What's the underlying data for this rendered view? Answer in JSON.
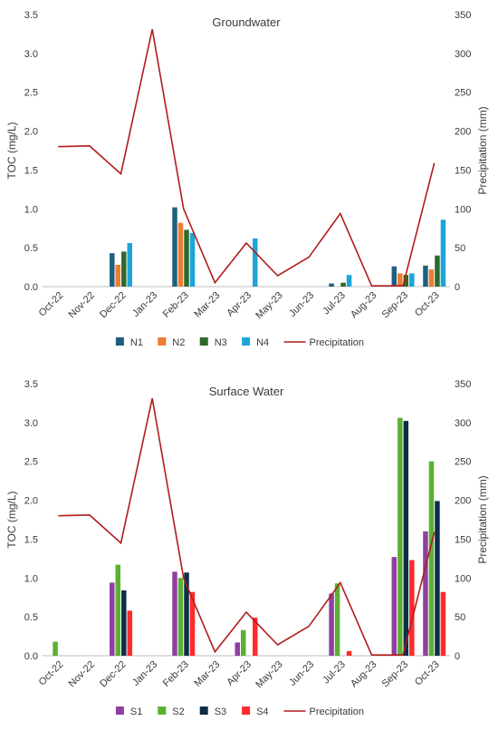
{
  "chart_data": [
    {
      "type": "bar",
      "title": "Groundwater",
      "ylabel": "TOC (mg/L)",
      "y2label": "Precipitation (mm)",
      "ylim": [
        0,
        3.5
      ],
      "y_ticks": [
        "0.0",
        "0.5",
        "1.0",
        "1.5",
        "2.0",
        "2.5",
        "3.0",
        "3.5"
      ],
      "y2lim": [
        0,
        350
      ],
      "y2_ticks": [
        "0",
        "50",
        "100",
        "150",
        "200",
        "250",
        "300",
        "350"
      ],
      "categories": [
        "Oct-22",
        "Nov-22",
        "Dec-22",
        "Jan-23",
        "Feb-23",
        "Mar-23",
        "Apr-23",
        "May-23",
        "Jun-23",
        "Jul-23",
        "Aug-23",
        "Sep-23",
        "Oct-23"
      ],
      "series": [
        {
          "name": "N1",
          "color": "#1f5f7f",
          "values": [
            null,
            null,
            0.43,
            null,
            1.02,
            null,
            null,
            null,
            null,
            0.04,
            null,
            0.26,
            0.27
          ]
        },
        {
          "name": "N2",
          "color": "#ed7d31",
          "values": [
            null,
            null,
            0.28,
            null,
            0.82,
            null,
            null,
            null,
            null,
            null,
            null,
            0.17,
            0.22
          ]
        },
        {
          "name": "N3",
          "color": "#2d6a2d",
          "values": [
            null,
            null,
            0.45,
            null,
            0.73,
            null,
            null,
            null,
            null,
            0.05,
            null,
            0.15,
            0.4
          ]
        },
        {
          "name": "N4",
          "color": "#1ea5d8",
          "values": [
            null,
            null,
            0.56,
            null,
            0.69,
            null,
            0.62,
            null,
            null,
            0.15,
            null,
            0.17,
            0.86
          ]
        }
      ],
      "line": {
        "name": "Precipitation",
        "color": "#b01c1c",
        "values": [
          180,
          181,
          145,
          331,
          100,
          5,
          56,
          14,
          38,
          94,
          1,
          1,
          159
        ]
      },
      "legend_position": "bottom"
    },
    {
      "type": "bar",
      "title": "Surface Water",
      "ylabel": "TOC (mg/L)",
      "y2label": "Precipitation (mm)",
      "ylim": [
        0,
        3.5
      ],
      "y_ticks": [
        "0.0",
        "0.5",
        "1.0",
        "1.5",
        "2.0",
        "2.5",
        "3.0",
        "3.5"
      ],
      "y2lim": [
        0,
        350
      ],
      "y2_ticks": [
        "0",
        "50",
        "100",
        "150",
        "200",
        "250",
        "300",
        "350"
      ],
      "categories": [
        "Oct-22",
        "Nov-22",
        "Dec-22",
        "Jan-23",
        "Feb-23",
        "Mar-23",
        "Apr-23",
        "May-23",
        "Jun-23",
        "Jul-23",
        "Aug-23",
        "Sep-23",
        "Oct-23"
      ],
      "series": [
        {
          "name": "S1",
          "color": "#8e3fa0",
          "values": [
            null,
            null,
            0.94,
            null,
            1.08,
            null,
            0.17,
            null,
            null,
            0.8,
            null,
            1.27,
            1.6
          ]
        },
        {
          "name": "S2",
          "color": "#5bb033",
          "values": [
            0.18,
            null,
            1.17,
            null,
            1.0,
            null,
            0.33,
            null,
            null,
            0.93,
            null,
            3.06,
            2.5
          ]
        },
        {
          "name": "S3",
          "color": "#0d2e48",
          "values": [
            null,
            null,
            0.84,
            null,
            1.07,
            null,
            null,
            null,
            null,
            null,
            null,
            3.02,
            1.99
          ]
        },
        {
          "name": "S4",
          "color": "#ff2b2b",
          "values": [
            null,
            null,
            0.58,
            null,
            0.82,
            null,
            0.49,
            null,
            null,
            0.06,
            null,
            1.23,
            0.82
          ]
        }
      ],
      "line": {
        "name": "Precipitation",
        "color": "#b01c1c",
        "values": [
          180,
          181,
          145,
          331,
          100,
          5,
          56,
          14,
          38,
          94,
          1,
          1,
          159
        ]
      },
      "legend_position": "bottom"
    }
  ]
}
